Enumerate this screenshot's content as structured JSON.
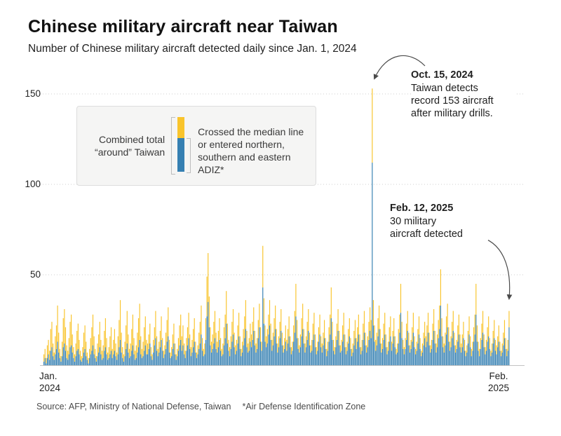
{
  "page": {
    "title": "Chinese military aircraft near Taiwan",
    "subtitle": "Number of Chinese military aircraft detected daily since Jan. 1, 2024",
    "source": "Source: AFP, Ministry of National Defense, Taiwan",
    "footnote": "*Air Defense Identification Zone"
  },
  "legend": {
    "left_label": "Combined total\n“around” Taiwan",
    "right_label": "Crossed the median line or entered northern, southern and eastern ADIZ*"
  },
  "annotations": [
    {
      "date": "Oct. 15, 2024",
      "body": "Taiwan detects\nrecord 153 aircraft\nafter military drills."
    },
    {
      "date": "Feb. 12, 2025",
      "body": "30 military\naircraft detected"
    }
  ],
  "axes": {
    "y_ticks": [
      50,
      100,
      150
    ],
    "x_left": "Jan.\n2024",
    "x_right": "Feb.\n2025"
  },
  "colors": {
    "total_yellow": "#F9C42C",
    "crossed_blue": "#3680B2",
    "gridline": "#cfcfcf",
    "baseline": "#c2c2c2",
    "arrow": "#4a4a4a"
  },
  "chart_data": {
    "type": "bar",
    "stacked": true,
    "title": "Chinese military aircraft near Taiwan",
    "x_start": "Jan. 1, 2024",
    "x_end": "Feb. 12, 2025",
    "ylim": [
      0,
      160
    ],
    "y_ticks": [
      50,
      100,
      150
    ],
    "grid": "dotted horizontal",
    "legend_position": "top-left box",
    "note": "Daily stacked bars; 'total' = combined total around Taiwan (yellow shows total minus crossed on top of blue); 'crossed' = crossed median line or entered northern, southern and eastern ADIZ. Key labeled points: Oct. 15, 2024 record 153 aircraft; Feb. 12, 2025 30 aircraft. Values are estimated from pixel heights except labeled points.",
    "series": [
      {
        "name": "Crossed the median line or entered northern, southern and eastern ADIZ",
        "color": "#3680B2",
        "values": [
          2,
          4,
          1,
          4,
          6,
          3,
          8,
          10,
          5,
          3,
          6,
          9,
          13,
          7,
          4,
          2,
          5,
          10,
          12,
          8,
          4,
          3,
          6,
          10,
          11,
          7,
          4,
          2,
          5,
          8,
          9,
          6,
          3,
          2,
          4,
          7,
          9,
          5,
          3,
          1,
          4,
          6,
          8,
          11,
          6,
          4,
          2,
          5,
          7,
          10,
          6,
          3,
          4,
          8,
          10,
          6,
          3,
          4,
          6,
          8,
          4,
          6,
          8,
          5,
          3,
          6,
          10,
          14,
          7,
          4,
          2,
          5,
          9,
          12,
          7,
          4,
          5,
          8,
          11,
          6,
          3,
          4,
          7,
          10,
          14,
          6,
          4,
          5,
          8,
          11,
          6,
          6,
          9,
          12,
          5,
          3,
          7,
          11,
          15,
          8,
          5,
          7,
          10,
          14,
          8,
          4,
          6,
          9,
          13,
          16,
          7,
          4,
          5,
          9,
          12,
          6,
          3,
          5,
          8,
          11,
          14,
          8,
          11,
          6,
          4,
          8,
          11,
          15,
          9,
          5,
          7,
          10,
          13,
          7,
          4,
          6,
          9,
          12,
          17,
          8,
          5,
          6,
          14,
          27,
          35,
          21,
          11,
          7,
          9,
          12,
          15,
          9,
          7,
          10,
          14,
          8,
          5,
          6,
          11,
          15,
          23,
          12,
          8,
          5,
          9,
          13,
          17,
          10,
          6,
          8,
          12,
          16,
          9,
          5,
          7,
          11,
          15,
          20,
          10,
          7,
          8,
          13,
          10,
          14,
          19,
          11,
          7,
          9,
          15,
          21,
          13,
          8,
          43,
          23,
          13,
          10,
          12,
          17,
          22,
          14,
          8,
          11,
          16,
          20,
          12,
          7,
          10,
          15,
          19,
          11,
          7,
          9,
          13,
          8,
          12,
          16,
          10,
          6,
          8,
          13,
          18,
          27,
          15,
          9,
          7,
          10,
          16,
          20,
          12,
          7,
          10,
          14,
          19,
          11,
          7,
          8,
          14,
          17,
          10,
          6,
          8,
          13,
          17,
          10,
          7,
          11,
          15,
          9,
          5,
          8,
          13,
          17,
          26,
          14,
          8,
          6,
          10,
          14,
          19,
          11,
          7,
          8,
          13,
          17,
          10,
          6,
          8,
          12,
          16,
          9,
          5,
          7,
          11,
          15,
          9,
          13,
          17,
          10,
          6,
          8,
          14,
          18,
          11,
          7,
          10,
          14,
          19,
          15,
          112,
          22,
          13,
          8,
          11,
          16,
          20,
          12,
          7,
          9,
          14,
          17,
          10,
          6,
          8,
          13,
          16,
          8,
          12,
          16,
          10,
          6,
          7,
          12,
          18,
          29,
          15,
          9,
          6,
          9,
          14,
          19,
          11,
          7,
          9,
          13,
          18,
          10,
          6,
          8,
          12,
          17,
          9,
          5,
          7,
          11,
          15,
          10,
          13,
          18,
          11,
          7,
          9,
          14,
          19,
          12,
          7,
          10,
          15,
          20,
          33,
          16,
          10,
          7,
          11,
          17,
          21,
          13,
          8,
          10,
          15,
          19,
          11,
          7,
          9,
          13,
          17,
          10,
          7,
          10,
          15,
          8,
          5,
          7,
          12,
          17,
          10,
          5,
          8,
          13,
          17,
          28,
          13,
          8,
          5,
          9,
          14,
          18,
          10,
          6,
          8,
          13,
          16,
          9,
          5,
          7,
          12,
          15,
          8,
          6,
          10,
          13,
          8,
          5,
          7,
          11,
          15,
          9,
          5,
          8,
          21
        ]
      },
      {
        "name": "Combined total around Taiwan",
        "color": "#F9C42C",
        "values": [
          6,
          9,
          4,
          11,
          14,
          8,
          20,
          24,
          12,
          7,
          16,
          22,
          33,
          18,
          9,
          5,
          13,
          26,
          31,
          21,
          11,
          8,
          15,
          24,
          28,
          17,
          10,
          6,
          12,
          19,
          23,
          14,
          8,
          5,
          10,
          18,
          22,
          13,
          7,
          4,
          9,
          15,
          21,
          28,
          16,
          9,
          5,
          12,
          17,
          24,
          14,
          8,
          11,
          19,
          26,
          15,
          7,
          10,
          16,
          21,
          9,
          14,
          20,
          12,
          7,
          16,
          25,
          36,
          18,
          10,
          6,
          13,
          22,
          30,
          17,
          9,
          12,
          20,
          28,
          15,
          8,
          11,
          18,
          26,
          34,
          16,
          9,
          13,
          21,
          27,
          14,
          12,
          17,
          23,
          10,
          6,
          14,
          21,
          30,
          16,
          9,
          13,
          19,
          27,
          15,
          8,
          11,
          18,
          25,
          32,
          14,
          7,
          10,
          17,
          23,
          12,
          6,
          9,
          15,
          22,
          28,
          16,
          22,
          12,
          8,
          15,
          21,
          29,
          17,
          10,
          14,
          20,
          26,
          13,
          7,
          11,
          18,
          24,
          33,
          15,
          9,
          12,
          26,
          49,
          62,
          38,
          21,
          13,
          17,
          24,
          30,
          18,
          13,
          19,
          26,
          15,
          9,
          12,
          21,
          28,
          41,
          23,
          14,
          10,
          16,
          24,
          31,
          18,
          11,
          14,
          22,
          29,
          16,
          9,
          13,
          20,
          27,
          36,
          19,
          12,
          15,
          23,
          17,
          24,
          32,
          19,
          12,
          15,
          25,
          34,
          21,
          13,
          66,
          37,
          22,
          16,
          20,
          28,
          36,
          23,
          14,
          18,
          26,
          33,
          20,
          12,
          16,
          24,
          31,
          18,
          11,
          15,
          22,
          14,
          20,
          27,
          16,
          10,
          13,
          22,
          30,
          45,
          25,
          15,
          11,
          17,
          26,
          34,
          20,
          12,
          16,
          24,
          31,
          18,
          11,
          14,
          23,
          29,
          17,
          10,
          13,
          21,
          28,
          16,
          12,
          18,
          25,
          15,
          9,
          13,
          21,
          28,
          43,
          24,
          14,
          10,
          16,
          23,
          31,
          19,
          11,
          14,
          22,
          29,
          17,
          10,
          13,
          20,
          26,
          15,
          9,
          12,
          19,
          25,
          15,
          21,
          28,
          17,
          10,
          14,
          23,
          30,
          18,
          11,
          16,
          24,
          32,
          25,
          153,
          36,
          22,
          14,
          18,
          26,
          33,
          20,
          12,
          15,
          23,
          29,
          17,
          10,
          13,
          21,
          27,
          13,
          19,
          26,
          16,
          9,
          12,
          20,
          28,
          45,
          24,
          14,
          10,
          15,
          23,
          30,
          18,
          11,
          14,
          21,
          29,
          16,
          9,
          13,
          20,
          27,
          15,
          8,
          12,
          18,
          24,
          16,
          22,
          29,
          18,
          11,
          14,
          23,
          31,
          19,
          12,
          17,
          25,
          33,
          53,
          26,
          16,
          12,
          18,
          27,
          34,
          21,
          13,
          16,
          24,
          30,
          18,
          11,
          14,
          22,
          28,
          17,
          12,
          17,
          24,
          14,
          8,
          11,
          19,
          27,
          16,
          9,
          13,
          21,
          28,
          45,
          22,
          13,
          9,
          15,
          23,
          30,
          17,
          10,
          14,
          21,
          27,
          15,
          8,
          12,
          19,
          25,
          14,
          11,
          16,
          22,
          13,
          8,
          12,
          18,
          25,
          15,
          9,
          14,
          30
        ]
      }
    ]
  }
}
